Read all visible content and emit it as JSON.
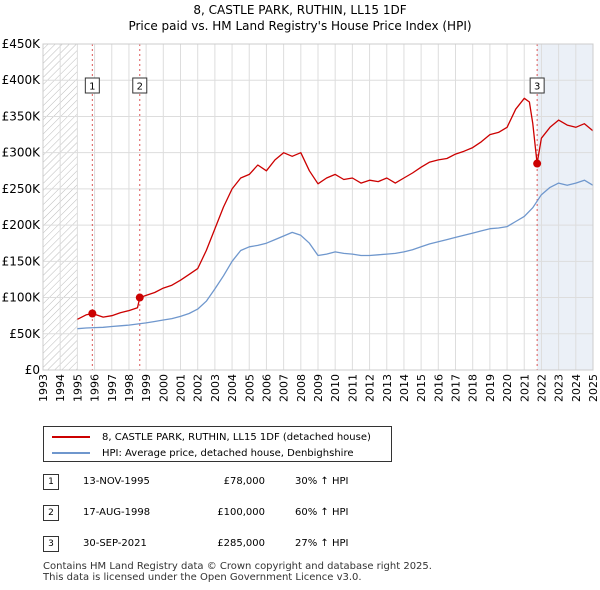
{
  "chart_data": {
    "type": "line",
    "title": "8, CASTLE PARK, RUTHIN, LL15 1DF",
    "subtitle": "Price paid vs. HM Land Registry's House Price Index (HPI)",
    "xlim": [
      1993,
      2025
    ],
    "ylim": [
      0,
      450000
    ],
    "x_ticks": [
      "1993",
      "1994",
      "1995",
      "1996",
      "1997",
      "1998",
      "1999",
      "2000",
      "2001",
      "2002",
      "2003",
      "2004",
      "2005",
      "2006",
      "2007",
      "2008",
      "2009",
      "2010",
      "2011",
      "2012",
      "2013",
      "2014",
      "2015",
      "2016",
      "2017",
      "2018",
      "2019",
      "2020",
      "2021",
      "2022",
      "2023",
      "2024",
      "2025"
    ],
    "y_ticks": [
      {
        "value": 0,
        "label": "£0"
      },
      {
        "value": 50000,
        "label": "£50K"
      },
      {
        "value": 100000,
        "label": "£100K"
      },
      {
        "value": 150000,
        "label": "£150K"
      },
      {
        "value": 200000,
        "label": "£200K"
      },
      {
        "value": 250000,
        "label": "£250K"
      },
      {
        "value": 300000,
        "label": "£300K"
      },
      {
        "value": 350000,
        "label": "£350K"
      },
      {
        "value": 400000,
        "label": "£400K"
      },
      {
        "value": 450000,
        "label": "£450K"
      }
    ],
    "no_data_before": 1995.0,
    "series": [
      {
        "name": "8, CASTLE PARK, RUTHIN, LL15 1DF (detached house)",
        "color": "#cc0000",
        "x": [
          1995.0,
          1995.5,
          1995.87,
          1996.5,
          1997.0,
          1997.5,
          1998.0,
          1998.5,
          1998.63,
          1999.0,
          1999.5,
          2000.0,
          2000.5,
          2001.0,
          2001.5,
          2002.0,
          2002.5,
          2003.0,
          2003.5,
          2004.0,
          2004.5,
          2005.0,
          2005.5,
          2006.0,
          2006.5,
          2007.0,
          2007.5,
          2008.0,
          2008.5,
          2009.0,
          2009.5,
          2010.0,
          2010.5,
          2011.0,
          2011.5,
          2012.0,
          2012.5,
          2013.0,
          2013.5,
          2014.0,
          2014.5,
          2015.0,
          2015.5,
          2016.0,
          2016.5,
          2017.0,
          2017.5,
          2018.0,
          2018.5,
          2019.0,
          2019.5,
          2020.0,
          2020.5,
          2021.0,
          2021.3,
          2021.5,
          2021.75,
          2022.0,
          2022.5,
          2023.0,
          2023.5,
          2024.0,
          2024.5,
          2025.0
        ],
        "values": [
          70000,
          76000,
          78000,
          73000,
          75000,
          79000,
          82000,
          86000,
          100000,
          103000,
          107000,
          113000,
          117000,
          124000,
          132000,
          140000,
          165000,
          195000,
          225000,
          250000,
          265000,
          270000,
          283000,
          275000,
          290000,
          300000,
          295000,
          300000,
          275000,
          257000,
          265000,
          270000,
          263000,
          265000,
          258000,
          262000,
          260000,
          265000,
          258000,
          265000,
          272000,
          280000,
          287000,
          290000,
          292000,
          298000,
          302000,
          307000,
          315000,
          325000,
          328000,
          335000,
          360000,
          375000,
          370000,
          340000,
          285000,
          320000,
          335000,
          345000,
          338000,
          335000,
          340000,
          330000
        ]
      },
      {
        "name": "HPI: Average price, detached house, Denbighshire",
        "color": "#6f97cd",
        "x": [
          1995.0,
          1995.5,
          1996.0,
          1996.5,
          1997.0,
          1997.5,
          1998.0,
          1998.5,
          1999.0,
          1999.5,
          2000.0,
          2000.5,
          2001.0,
          2001.5,
          2002.0,
          2002.5,
          2003.0,
          2003.5,
          2004.0,
          2004.5,
          2005.0,
          2005.5,
          2006.0,
          2006.5,
          2007.0,
          2007.5,
          2008.0,
          2008.5,
          2009.0,
          2009.5,
          2010.0,
          2010.5,
          2011.0,
          2011.5,
          2012.0,
          2012.5,
          2013.0,
          2013.5,
          2014.0,
          2014.5,
          2015.0,
          2015.5,
          2016.0,
          2016.5,
          2017.0,
          2017.5,
          2018.0,
          2018.5,
          2019.0,
          2019.5,
          2020.0,
          2020.5,
          2021.0,
          2021.5,
          2022.0,
          2022.5,
          2023.0,
          2023.5,
          2024.0,
          2024.5,
          2025.0
        ],
        "values": [
          57000,
          58000,
          58500,
          59000,
          60000,
          61000,
          62000,
          63500,
          65000,
          67000,
          69000,
          71000,
          74000,
          78000,
          84000,
          95000,
          112000,
          130000,
          150000,
          165000,
          170000,
          172000,
          175000,
          180000,
          185000,
          190000,
          186000,
          175000,
          158000,
          160000,
          163000,
          161000,
          160000,
          158000,
          158000,
          159000,
          160000,
          161000,
          163000,
          166000,
          170000,
          174000,
          177000,
          180000,
          183000,
          186000,
          189000,
          192000,
          195000,
          196000,
          198000,
          205000,
          212000,
          224000,
          242000,
          252000,
          258000,
          255000,
          258000,
          262000,
          255000
        ]
      }
    ],
    "markers": [
      {
        "label": "1",
        "x": 1995.87,
        "y": 78000
      },
      {
        "label": "2",
        "x": 1998.63,
        "y": 100000
      },
      {
        "label": "3",
        "x": 2021.75,
        "y": 285000
      }
    ]
  },
  "legend": {
    "property_label": "8, CASTLE PARK, RUTHIN, LL15 1DF (detached house)",
    "hpi_label": "HPI: Average price, detached house, Denbighshire",
    "property_color": "#cc0000",
    "hpi_color": "#6f97cd"
  },
  "transactions": [
    {
      "num": "1",
      "date": "13-NOV-1995",
      "price": "£78,000",
      "hpi": "30% ↑ HPI"
    },
    {
      "num": "2",
      "date": "17-AUG-1998",
      "price": "£100,000",
      "hpi": "60% ↑ HPI"
    },
    {
      "num": "3",
      "date": "30-SEP-2021",
      "price": "£285,000",
      "hpi": "27% ↑ HPI"
    }
  ],
  "footer": {
    "line1": "Contains HM Land Registry data © Crown copyright and database right 2025.",
    "line2": "This data is licensed under the Open Government Licence v3.0."
  }
}
